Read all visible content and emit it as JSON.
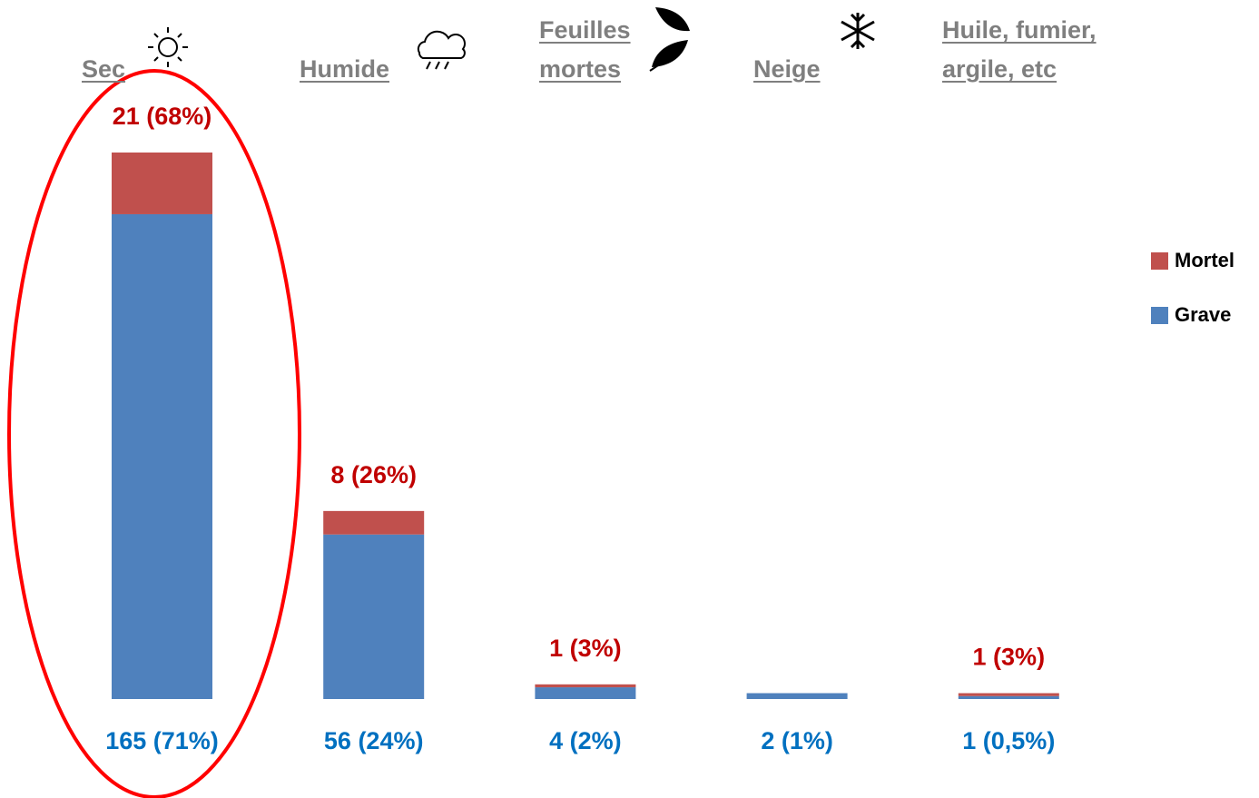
{
  "chart_data": {
    "type": "stacked_bar",
    "categories": [
      "Sec",
      "Humide",
      "Feuilles\nmortes",
      "Neige",
      "Huile, fumier,\nargile, etc"
    ],
    "series": [
      {
        "name": "Grave",
        "color": "#4f81bd",
        "values": [
          165,
          56,
          4,
          2,
          1
        ],
        "value_labels": [
          "165 (71%)",
          "56 (24%)",
          "4 (2%)",
          "2 (1%)",
          "1 (0,5%)"
        ],
        "label_color": "#0070c0"
      },
      {
        "name": "Mortel",
        "color": "#c0504d",
        "values": [
          21,
          8,
          1,
          0,
          1
        ],
        "value_labels": [
          "21 (68%)",
          "8 (26%)",
          "1 (3%)",
          null,
          "1 (3%)"
        ],
        "label_color": "#c00000"
      }
    ]
  }
}
